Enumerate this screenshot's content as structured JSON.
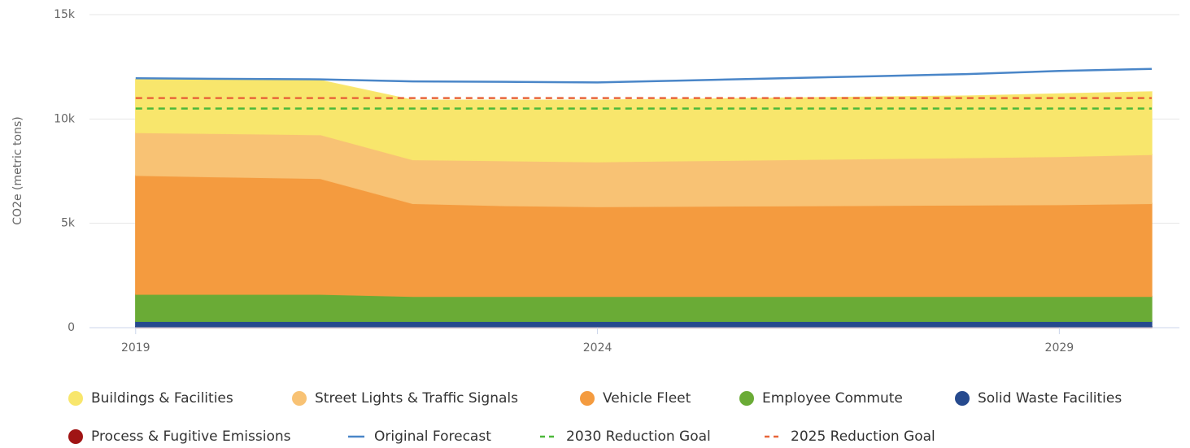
{
  "chart_data": {
    "type": "stacked-area",
    "y_label": "CO2e (metric tons)",
    "x": [
      2019,
      2020,
      2021,
      2022,
      2023,
      2024,
      2025,
      2026,
      2027,
      2028,
      2029,
      2030
    ],
    "xlim": [
      2018.5,
      2030.3
    ],
    "xticks": [
      2019,
      2024,
      2029
    ],
    "ylim": [
      0,
      15000
    ],
    "yticks": [
      0,
      {
        "value": 5000,
        "label": "5k"
      },
      {
        "value": 10000,
        "label": "10k"
      },
      {
        "value": 15000,
        "label": "15k"
      }
    ],
    "grid": true,
    "series": [
      {
        "name": "Buildings & Facilities",
        "kind": "area",
        "color": "#f8e66c",
        "values": [
          2550,
          2580,
          2600,
          2850,
          2900,
          2950,
          2950,
          2950,
          2950,
          2950,
          3000,
          3000
        ]
      },
      {
        "name": "Street Lights & Traffic Signals",
        "kind": "area",
        "color": "#f8c274",
        "values": [
          2050,
          2080,
          2100,
          2100,
          2150,
          2150,
          2180,
          2210,
          2240,
          2270,
          2300,
          2350
        ]
      },
      {
        "name": "Vehicle Fleet",
        "kind": "area",
        "color": "#f49b3f",
        "values": [
          5700,
          5620,
          5550,
          4450,
          4350,
          4300,
          4320,
          4340,
          4360,
          4380,
          4400,
          4450
        ]
      },
      {
        "name": "Employee Commute",
        "kind": "area",
        "color": "#6aab36",
        "values": [
          1300,
          1300,
          1300,
          1200,
          1200,
          1200,
          1200,
          1200,
          1200,
          1200,
          1200,
          1200
        ]
      },
      {
        "name": "Solid Waste Facilities",
        "kind": "area",
        "color": "#264a8e",
        "values": [
          250,
          250,
          250,
          250,
          250,
          250,
          250,
          250,
          250,
          250,
          250,
          250
        ]
      },
      {
        "name": "Process & Fugitive Emissions",
        "kind": "area",
        "color": "#a01414",
        "values": [
          50,
          50,
          50,
          50,
          50,
          50,
          50,
          50,
          50,
          50,
          50,
          50
        ]
      },
      {
        "name": "Original Forecast",
        "kind": "line",
        "color": "#4a86c8",
        "values": [
          11950,
          11920,
          11900,
          11800,
          11780,
          11750,
          11850,
          11950,
          12050,
          12150,
          12300,
          12400
        ]
      },
      {
        "name": "2030 Reduction Goal",
        "kind": "line",
        "dash": true,
        "color": "#4cb83a",
        "values": [
          10500,
          10500,
          10500,
          10500,
          10500,
          10500,
          10500,
          10500,
          10500,
          10500,
          10500,
          10500
        ]
      },
      {
        "name": "2025 Reduction Goal",
        "kind": "line",
        "dash": true,
        "color": "#e8663a",
        "values": [
          11000,
          11000,
          11000,
          11000,
          11000,
          11000,
          11000,
          11000,
          11000,
          11000,
          11000,
          11000
        ]
      }
    ]
  }
}
